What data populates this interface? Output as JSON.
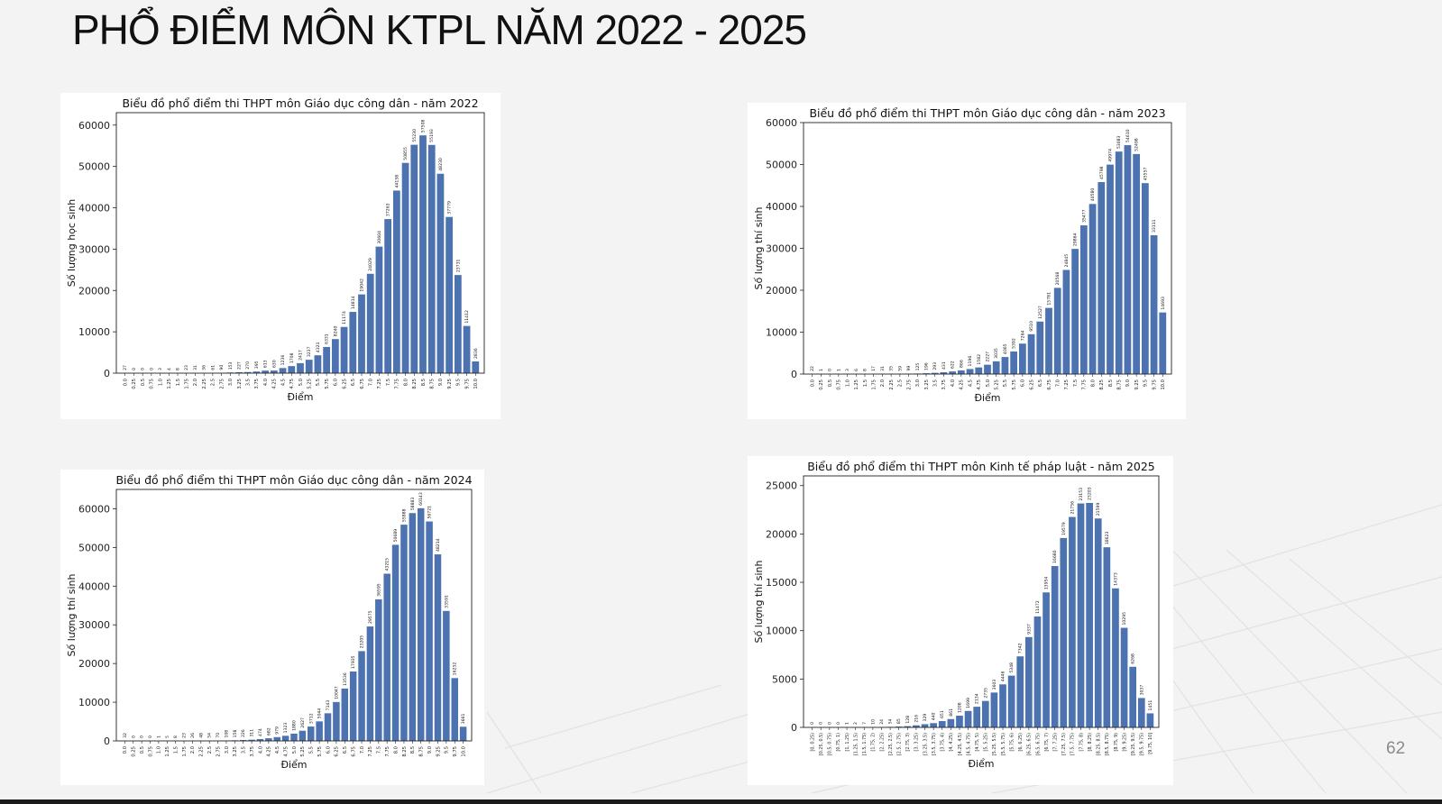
{
  "slide": {
    "title": "PHỔ ĐIỂM MÔN KTPL NĂM 2022 - 2025",
    "page_number": "62"
  },
  "colors": {
    "bar": "#4c72b0",
    "background": "#f3f3f4",
    "card": "#ffffff"
  },
  "chart_data": [
    {
      "type": "bar",
      "title": "Biểu đồ phổ điểm thi THPT môn Giáo dục công dân - năm 2022",
      "xlabel": "Điểm",
      "ylabel": "Số lượng học sinh",
      "ylim": [
        0,
        63000
      ],
      "yticks": [
        0,
        10000,
        20000,
        30000,
        40000,
        50000,
        60000
      ],
      "categories": [
        "0.0",
        "0.25",
        "0.5",
        "0.75",
        "1.0",
        "1.25",
        "1.5",
        "1.75",
        "2.0",
        "2.25",
        "2.5",
        "2.75",
        "3.0",
        "3.25",
        "3.5",
        "3.75",
        "4.0",
        "4.25",
        "4.5",
        "4.75",
        "5.0",
        "5.25",
        "5.5",
        "5.75",
        "6.0",
        "6.25",
        "6.5",
        "6.75",
        "7.0",
        "7.25",
        "7.5",
        "7.75",
        "8.0",
        "8.25",
        "8.5",
        "8.75",
        "9.0",
        "9.25",
        "9.5",
        "9.75",
        "10.0"
      ],
      "values": [
        27,
        0,
        0,
        0,
        3,
        4,
        8,
        23,
        31,
        36,
        61,
        90,
        153,
        227,
        270,
        395,
        613,
        630,
        1236,
        1708,
        2417,
        3237,
        4321,
        6331,
        8240,
        11174,
        14814,
        19042,
        24029,
        30604,
        37263,
        44158,
        50855,
        55230,
        57508,
        55193,
        48230,
        37779,
        23731,
        11412,
        2836
      ]
    },
    {
      "type": "bar",
      "title": "Biểu đồ phổ điểm thi THPT môn Giáo dục công dân - năm 2023",
      "xlabel": "Điểm",
      "ylabel": "Số lượng thí sinh",
      "ylim": [
        0,
        60000
      ],
      "yticks": [
        0,
        10000,
        20000,
        30000,
        40000,
        50000,
        60000
      ],
      "categories": [
        "0.0",
        "0.25",
        "0.5",
        "0.75",
        "1.0",
        "1.25",
        "1.5",
        "1.75",
        "2.0",
        "2.25",
        "2.5",
        "2.75",
        "3.0",
        "3.25",
        "3.5",
        "3.75",
        "4.0",
        "4.25",
        "4.5",
        "4.75",
        "5.0",
        "5.25",
        "5.5",
        "5.75",
        "6.0",
        "6.25",
        "6.5",
        "6.75",
        "7.0",
        "7.25",
        "7.5",
        "7.75",
        "8.0",
        "8.25",
        "8.5",
        "8.75",
        "9.0",
        "9.25",
        "9.5",
        "9.75",
        "10.0"
      ],
      "values": [
        22,
        1,
        0,
        1,
        3,
        6,
        8,
        17,
        31,
        35,
        59,
        99,
        125,
        196,
        293,
        431,
        622,
        866,
        1196,
        1582,
        2227,
        3035,
        4065,
        5392,
        7264,
        9510,
        12527,
        15781,
        20568,
        24845,
        29864,
        35477,
        40580,
        45798,
        49974,
        53083,
        54610,
        52498,
        45557,
        33111,
        14693
      ]
    },
    {
      "type": "bar",
      "title": "Biểu đồ phổ điểm thi THPT môn Giáo dục công dân - năm 2024",
      "xlabel": "Điểm",
      "ylabel": "Số lượng thí sinh",
      "ylim": [
        0,
        65000
      ],
      "yticks": [
        0,
        10000,
        20000,
        30000,
        40000,
        50000,
        60000
      ],
      "categories": [
        "0.0",
        "0.25",
        "0.5",
        "0.75",
        "1.0",
        "1.25",
        "1.5",
        "1.75",
        "2.0",
        "2.25",
        "2.5",
        "2.75",
        "3.0",
        "3.25",
        "3.5",
        "3.75",
        "4.0",
        "4.25",
        "4.5",
        "4.75",
        "5.0",
        "5.25",
        "5.5",
        "5.75",
        "6.0",
        "6.25",
        "6.5",
        "6.75",
        "7.0",
        "7.25",
        "7.5",
        "7.75",
        "8.0",
        "8.25",
        "8.5",
        "8.75",
        "9.0",
        "9.25",
        "9.5",
        "9.75",
        "10.0"
      ],
      "values": [
        32,
        0,
        0,
        0,
        1,
        5,
        8,
        23,
        26,
        48,
        54,
        70,
        108,
        158,
        226,
        311,
        474,
        682,
        979,
        1323,
        1880,
        2627,
        3712,
        5044,
        7143,
        10047,
        13536,
        17935,
        23205,
        29575,
        36595,
        43215,
        50689,
        55888,
        58883,
        60143,
        56721,
        48214,
        33591,
        16232,
        3661
      ]
    },
    {
      "type": "bar",
      "title": "Biểu đồ phổ điểm thi THPT môn Kinh tế pháp luật - năm 2025",
      "xlabel": "Điểm",
      "ylabel": "Số lượng thí sinh",
      "ylim": [
        0,
        26000
      ],
      "yticks": [
        0,
        5000,
        10000,
        15000,
        20000,
        25000
      ],
      "categories": [
        "[0, 0.25)",
        "[0.25, 0.5)",
        "[0.5, 0.75)",
        "[0.75, 1)",
        "[1, 1.25)",
        "[1.25, 1.5)",
        "[1.5, 1.75)",
        "[1.75, 2)",
        "[2, 2.25)",
        "[2.25, 2.5)",
        "[2.5, 2.75)",
        "[2.75, 3)",
        "[3, 3.25)",
        "[3.25, 3.5)",
        "[3.5, 3.75)",
        "[3.75, 4)",
        "[4, 4.25)",
        "[4.25, 4.5)",
        "[4.5, 4.75)",
        "[4.75, 5)",
        "[5, 5.25)",
        "[5.25, 5.5)",
        "[5.5, 5.75)",
        "[5.75, 6)",
        "[6, 6.25)",
        "[6.25, 6.5)",
        "[6.5, 6.75)",
        "[6.75, 7)",
        "[7, 7.25)",
        "[7.25, 7.5)",
        "[7.5, 7.75)",
        "[7.75, 8)",
        "[8, 8.25)",
        "[8.25, 8.5)",
        "[8.5, 8.75)",
        "[8.75, 9)",
        "[9, 9.25)",
        "[9.25, 9.5)",
        "[9.5, 9.75)",
        "[9.75, 10]"
      ],
      "values": [
        0,
        0,
        0,
        0,
        1,
        2,
        7,
        10,
        24,
        54,
        85,
        128,
        216,
        329,
        440,
        651,
        861,
        1208,
        1699,
        2134,
        2735,
        3603,
        4446,
        5348,
        7342,
        9337,
        11472,
        13954,
        16680,
        19579,
        21756,
        23153,
        23203,
        21599,
        18623,
        14373,
        10295,
        6268,
        3037,
        1451
      ]
    }
  ]
}
